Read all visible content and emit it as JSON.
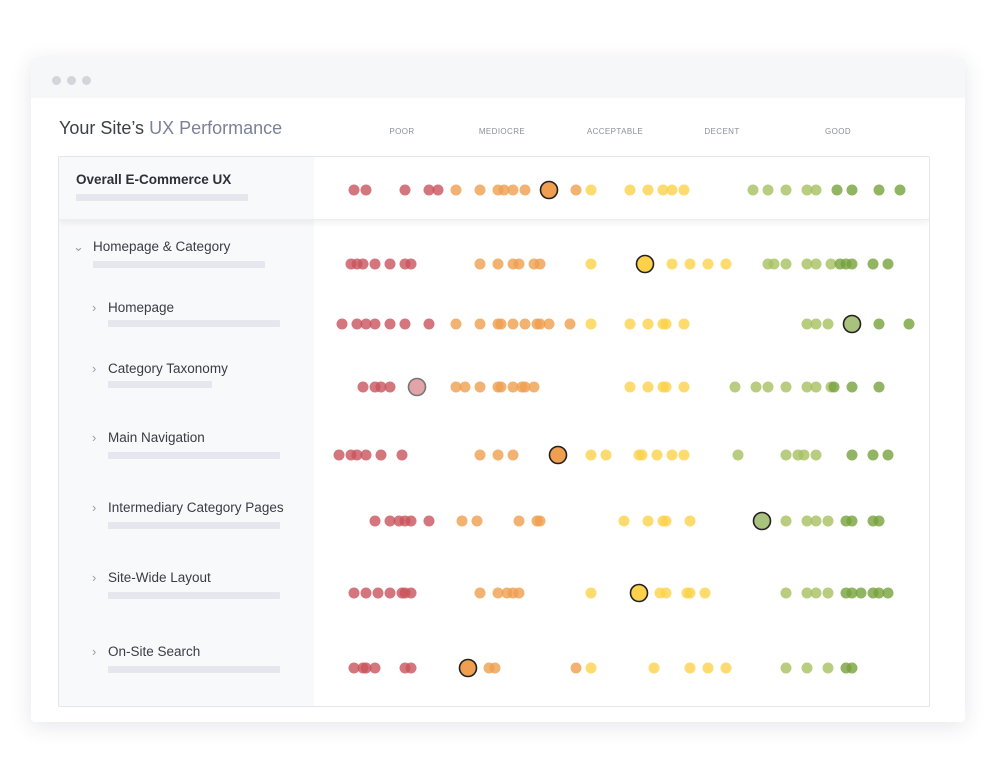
{
  "window": {
    "title": "Your Site’s",
    "title_highlight": "UX Performance"
  },
  "chart_data": {
    "type": "scatter",
    "title": "Your Site’s UX Performance",
    "xlabel": "",
    "ylabel": "",
    "x_range": [
      0,
      100
    ],
    "rating_labels": [
      "POOR",
      "MEDIOCRE",
      "ACCEPTABLE",
      "DECENT",
      "GOOD"
    ],
    "rating_label_positions": [
      12,
      29,
      47.5,
      65,
      84.5
    ],
    "colors": {
      "poor": "#c9545c",
      "mediocre": "#ef9f4f",
      "acceptable": "#fdd24a",
      "decent": "#a6c060",
      "good": "#77a23c"
    },
    "rows": [
      {
        "label": "Overall E-Commerce UX",
        "highlight": 36.5,
        "values": [
          4,
          6,
          12.5,
          16.5,
          18,
          21,
          25,
          28,
          29,
          30.5,
          32.5,
          41,
          43.5,
          50,
          53,
          55.5,
          57,
          59,
          70.5,
          73,
          76,
          79.5,
          81,
          84.5,
          87,
          91.5,
          95
        ]
      },
      {
        "label": "Homepage & Category",
        "expanded": true,
        "highlight": 52.5,
        "values": [
          3.5,
          4.5,
          5.5,
          7.5,
          10,
          12.5,
          13.5,
          25,
          28,
          30.5,
          31.5,
          34,
          35,
          43.5,
          57,
          60,
          63,
          66,
          73,
          74,
          76,
          79.5,
          81,
          83.5,
          85,
          86,
          87,
          90.5,
          93
        ]
      },
      {
        "label": "Homepage",
        "highlight": 87,
        "values": [
          2,
          4.5,
          6,
          7.5,
          10,
          12.5,
          16.5,
          21,
          25,
          28,
          28.5,
          30.5,
          32.5,
          34.5,
          35,
          36.5,
          40,
          43.5,
          50,
          53,
          55.5,
          56,
          59,
          79.5,
          81,
          83,
          91.5,
          96.5
        ]
      },
      {
        "label": "Category Taxonomy",
        "highlight": 14.5,
        "values": [
          5.5,
          7.5,
          8.5,
          10,
          21,
          22.5,
          25,
          28,
          28.5,
          30.5,
          32,
          32.5,
          34,
          50,
          53,
          55.5,
          56,
          59,
          67.5,
          71,
          73,
          76,
          79.5,
          81,
          83.5,
          84,
          87,
          91.5
        ]
      },
      {
        "label": "Main Navigation",
        "highlight": 38,
        "values": [
          1.5,
          3.5,
          4.5,
          6,
          8.5,
          12,
          25,
          28,
          30.5,
          43.5,
          46,
          51.5,
          52,
          54.5,
          57,
          59,
          68,
          76,
          78,
          79,
          81,
          87,
          90.5,
          93
        ]
      },
      {
        "label": "Intermediary Category Pages",
        "highlight": 72,
        "values": [
          7.5,
          10,
          11.5,
          12.5,
          13.5,
          16.5,
          22,
          24.5,
          31.5,
          34.5,
          35,
          49,
          53,
          55.5,
          56,
          60,
          76,
          79.5,
          81,
          83,
          86,
          87,
          90.5,
          91.5
        ]
      },
      {
        "label": "Site-Wide Layout",
        "highlight": 51.5,
        "values": [
          4,
          6,
          8,
          10,
          12,
          12.5,
          13.5,
          25,
          28,
          29.5,
          30.5,
          31.5,
          43.5,
          55,
          56,
          59.5,
          60,
          62.5,
          76,
          79.5,
          81,
          83,
          86,
          87,
          88.5,
          90.5,
          91.5,
          93
        ]
      },
      {
        "label": "On-Site Search",
        "highlight": 23,
        "values": [
          4,
          5.5,
          6,
          7.5,
          12.5,
          13.5,
          26.5,
          27.5,
          41,
          43.5,
          54,
          60,
          63,
          66,
          76,
          79.5,
          83,
          86,
          87
        ]
      }
    ]
  }
}
